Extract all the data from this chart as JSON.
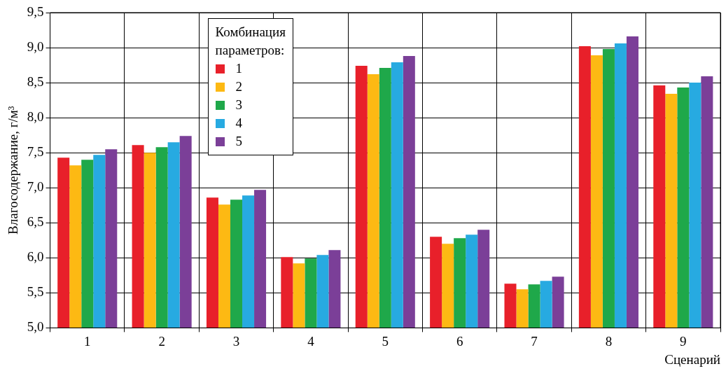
{
  "chart_data": {
    "type": "bar",
    "ylabel": "Влагосодержание, г/м³",
    "xlabel": "Сценарий",
    "legend_title": "Комбинация параметров:",
    "categories": [
      "1",
      "2",
      "3",
      "4",
      "5",
      "6",
      "7",
      "8",
      "9"
    ],
    "series": [
      {
        "name": "1",
        "color": "#e8202a",
        "values": [
          7.43,
          7.61,
          6.86,
          6.01,
          8.74,
          6.3,
          5.63,
          9.02,
          8.46
        ]
      },
      {
        "name": "2",
        "color": "#fdb913",
        "values": [
          7.32,
          7.5,
          6.76,
          5.92,
          8.62,
          6.2,
          5.55,
          8.89,
          8.34
        ]
      },
      {
        "name": "3",
        "color": "#1fa84a",
        "values": [
          7.4,
          7.58,
          6.83,
          5.99,
          8.71,
          6.28,
          5.62,
          8.98,
          8.43
        ]
      },
      {
        "name": "4",
        "color": "#27aae1",
        "values": [
          7.47,
          7.65,
          6.89,
          6.04,
          8.79,
          6.33,
          5.67,
          9.06,
          8.5
        ]
      },
      {
        "name": "5",
        "color": "#7b3f98",
        "values": [
          7.55,
          7.74,
          6.97,
          6.11,
          8.88,
          6.4,
          5.73,
          9.16,
          8.59
        ]
      }
    ],
    "ylim": [
      5,
      9.5
    ],
    "yticks": [
      {
        "value": 5,
        "label": "5,0"
      },
      {
        "value": 5.5,
        "label": "5,5"
      },
      {
        "value": 6,
        "label": "6,0"
      },
      {
        "value": 6.5,
        "label": "6,5"
      },
      {
        "value": 7,
        "label": "7,0"
      },
      {
        "value": 7.5,
        "label": "7,5"
      },
      {
        "value": 8,
        "label": "8,0"
      },
      {
        "value": 8.5,
        "label": "8,5"
      },
      {
        "value": 9,
        "label": "9,0"
      },
      {
        "value": 9.5,
        "label": "9,5"
      }
    ],
    "grid": true,
    "legend": "top left"
  }
}
